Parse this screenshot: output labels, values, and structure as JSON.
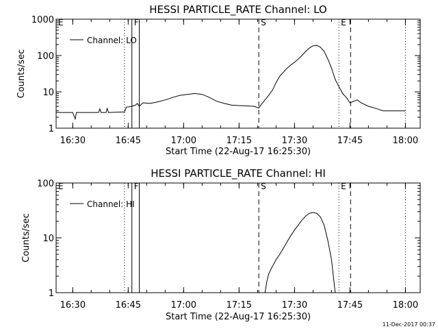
{
  "footer_timestamp": "11-Dec-2017 00:37",
  "chart_data": [
    {
      "type": "line",
      "title": "HESSI PARTICLE_RATE Channel: LO",
      "xlabel": "Start Time (22-Aug-17 16:25:30)",
      "ylabel": "Counts/sec",
      "yscale": "log",
      "ylim": [
        1,
        1000
      ],
      "xlim": [
        "16:25:30",
        "18:04:00"
      ],
      "grid": false,
      "legend": {
        "placement": "top-left",
        "label": "Channel: LO"
      },
      "x_tick_labels": [
        "16:30",
        "16:45",
        "17:00",
        "17:15",
        "17:30",
        "17:45",
        "18:00"
      ],
      "y_tick_labels": [
        "1",
        "10",
        "100",
        "1000"
      ],
      "markers": [
        {
          "label": "E",
          "time": "16:25:30",
          "style": "dotted"
        },
        {
          "label": "",
          "time": "16:44:00",
          "style": "dotted"
        },
        {
          "label": "F",
          "time": "16:46:00",
          "style": "solid"
        },
        {
          "label": "",
          "time": "16:48:00",
          "style": "solid"
        },
        {
          "label": "S",
          "time": "17:20:20",
          "style": "dashed"
        },
        {
          "label": "E",
          "time": "17:42:00",
          "style": "dotted"
        },
        {
          "label": "",
          "time": "17:45:10",
          "style": "dashed"
        },
        {
          "label": "",
          "time": "18:00:00",
          "style": "dotted"
        }
      ],
      "series": [
        {
          "values": [
            [
              "16:25:30",
              2.7
            ],
            [
              "16:30:00",
              2.7
            ],
            [
              "16:30:40",
              1.8
            ],
            [
              "16:31:00",
              2.7
            ],
            [
              "16:37:00",
              2.7
            ],
            [
              "16:37:20",
              3.4
            ],
            [
              "16:37:40",
              2.7
            ],
            [
              "16:39:00",
              2.7
            ],
            [
              "16:39:20",
              3.5
            ],
            [
              "16:39:40",
              2.7
            ],
            [
              "16:44:00",
              2.8
            ],
            [
              "16:44:30",
              3.8
            ],
            [
              "16:46:00",
              4.0
            ],
            [
              "16:47:00",
              4.3
            ],
            [
              "16:47:30",
              4.8
            ],
            [
              "16:48:00",
              4.0
            ],
            [
              "16:49:00",
              5.0
            ],
            [
              "16:51:00",
              4.8
            ],
            [
              "16:53:00",
              5.3
            ],
            [
              "16:55:00",
              6.0
            ],
            [
              "16:57:00",
              7.0
            ],
            [
              "16:59:00",
              8.0
            ],
            [
              "17:01:00",
              8.5
            ],
            [
              "17:03:00",
              9.0
            ],
            [
              "17:05:00",
              8.5
            ],
            [
              "17:07:00",
              7.0
            ],
            [
              "17:09:00",
              5.5
            ],
            [
              "17:11:00",
              4.8
            ],
            [
              "17:13:00",
              4.3
            ],
            [
              "17:15:00",
              4.2
            ],
            [
              "17:17:00",
              4.1
            ],
            [
              "17:19:00",
              4.0
            ],
            [
              "17:20:20",
              3.6
            ],
            [
              "17:21:00",
              4.5
            ],
            [
              "17:22:00",
              6.0
            ],
            [
              "17:23:00",
              8.0
            ],
            [
              "17:24:00",
              11
            ],
            [
              "17:25:00",
              18
            ],
            [
              "17:26:00",
              27
            ],
            [
              "17:27:00",
              35
            ],
            [
              "17:28:00",
              45
            ],
            [
              "17:29:00",
              55
            ],
            [
              "17:30:00",
              65
            ],
            [
              "17:31:00",
              80
            ],
            [
              "17:32:00",
              100
            ],
            [
              "17:33:00",
              130
            ],
            [
              "17:34:00",
              160
            ],
            [
              "17:35:00",
              185
            ],
            [
              "17:36:00",
              190
            ],
            [
              "17:37:00",
              170
            ],
            [
              "17:38:00",
              130
            ],
            [
              "17:39:00",
              80
            ],
            [
              "17:40:00",
              45
            ],
            [
              "17:41:00",
              22
            ],
            [
              "17:42:00",
              14
            ],
            [
              "17:43:00",
              9
            ],
            [
              "17:44:00",
              7
            ],
            [
              "17:45:00",
              5
            ],
            [
              "17:46:00",
              5.5
            ],
            [
              "17:47:00",
              6
            ],
            [
              "17:48:00",
              5.0
            ],
            [
              "17:50:00",
              4.0
            ],
            [
              "17:52:00",
              3.5
            ],
            [
              "17:54:00",
              3.0
            ],
            [
              "17:56:00",
              3.0
            ],
            [
              "17:58:00",
              3.0
            ],
            [
              "18:00:00",
              3.0
            ]
          ]
        }
      ]
    },
    {
      "type": "line",
      "title": "HESSI PARTICLE_RATE Channel: HI",
      "xlabel": "Start Time (22-Aug-17 16:25:30)",
      "ylabel": "Counts/sec",
      "yscale": "log",
      "ylim": [
        1,
        100
      ],
      "xlim": [
        "16:25:30",
        "18:04:00"
      ],
      "grid": false,
      "legend": {
        "placement": "top-left",
        "label": "Channel: HI"
      },
      "x_tick_labels": [
        "16:30",
        "16:45",
        "17:00",
        "17:15",
        "17:30",
        "17:45",
        "18:00"
      ],
      "y_tick_labels": [
        "1",
        "10",
        "100"
      ],
      "markers": [
        {
          "label": "E",
          "time": "16:25:30",
          "style": "dotted"
        },
        {
          "label": "",
          "time": "16:44:00",
          "style": "dotted"
        },
        {
          "label": "F",
          "time": "16:46:00",
          "style": "solid"
        },
        {
          "label": "",
          "time": "16:48:00",
          "style": "solid"
        },
        {
          "label": "S",
          "time": "17:20:20",
          "style": "dashed"
        },
        {
          "label": "E",
          "time": "17:42:00",
          "style": "dotted"
        },
        {
          "label": "",
          "time": "17:45:10",
          "style": "dashed"
        },
        {
          "label": "",
          "time": "18:00:00",
          "style": "dotted"
        }
      ],
      "series": [
        {
          "values": [
            [
              "17:22:00",
              1.0
            ],
            [
              "17:22:30",
              1.6
            ],
            [
              "17:23:00",
              2.2
            ],
            [
              "17:24:00",
              3.0
            ],
            [
              "17:25:00",
              4.0
            ],
            [
              "17:26:00",
              5.0
            ],
            [
              "17:27:00",
              6.5
            ],
            [
              "17:28:00",
              8.5
            ],
            [
              "17:29:00",
              11
            ],
            [
              "17:30:00",
              14
            ],
            [
              "17:31:00",
              17
            ],
            [
              "17:32:00",
              21
            ],
            [
              "17:33:00",
              25
            ],
            [
              "17:34:00",
              28
            ],
            [
              "17:35:00",
              29
            ],
            [
              "17:36:00",
              28
            ],
            [
              "17:37:00",
              24
            ],
            [
              "17:38:00",
              17
            ],
            [
              "17:39:00",
              9
            ],
            [
              "17:40:00",
              4
            ],
            [
              "17:40:30",
              2
            ],
            [
              "17:41:00",
              1.0
            ]
          ]
        }
      ]
    }
  ]
}
